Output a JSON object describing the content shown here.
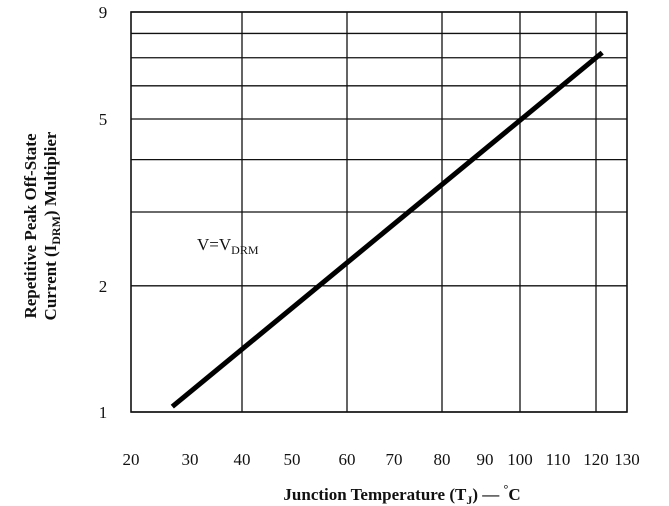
{
  "chart_data": {
    "type": "line",
    "title": "",
    "xlabel_parts": [
      "Junction Temperature (T",
      "J",
      ") — ",
      "°",
      "C"
    ],
    "ylabel_line1": "Repetitive Peak Off-State",
    "ylabel_line2_parts": [
      "Current (I",
      "DRM",
      ") Multiplier"
    ],
    "x_ticks": [
      20,
      30,
      40,
      50,
      60,
      70,
      80,
      90,
      100,
      110,
      120,
      130
    ],
    "xlim": [
      20,
      130
    ],
    "y_scale": "log",
    "y_ticks": [
      1,
      2,
      5,
      9
    ],
    "y_gridlines": [
      1,
      2,
      3,
      4,
      5,
      6,
      7,
      8,
      9
    ],
    "ylim": [
      1,
      9
    ],
    "grid": true,
    "series": [
      {
        "x": [
          27,
          122
        ],
        "y": [
          1.03,
          7.2
        ]
      }
    ],
    "annotation_parts": [
      "V=V",
      "DRM"
    ]
  }
}
